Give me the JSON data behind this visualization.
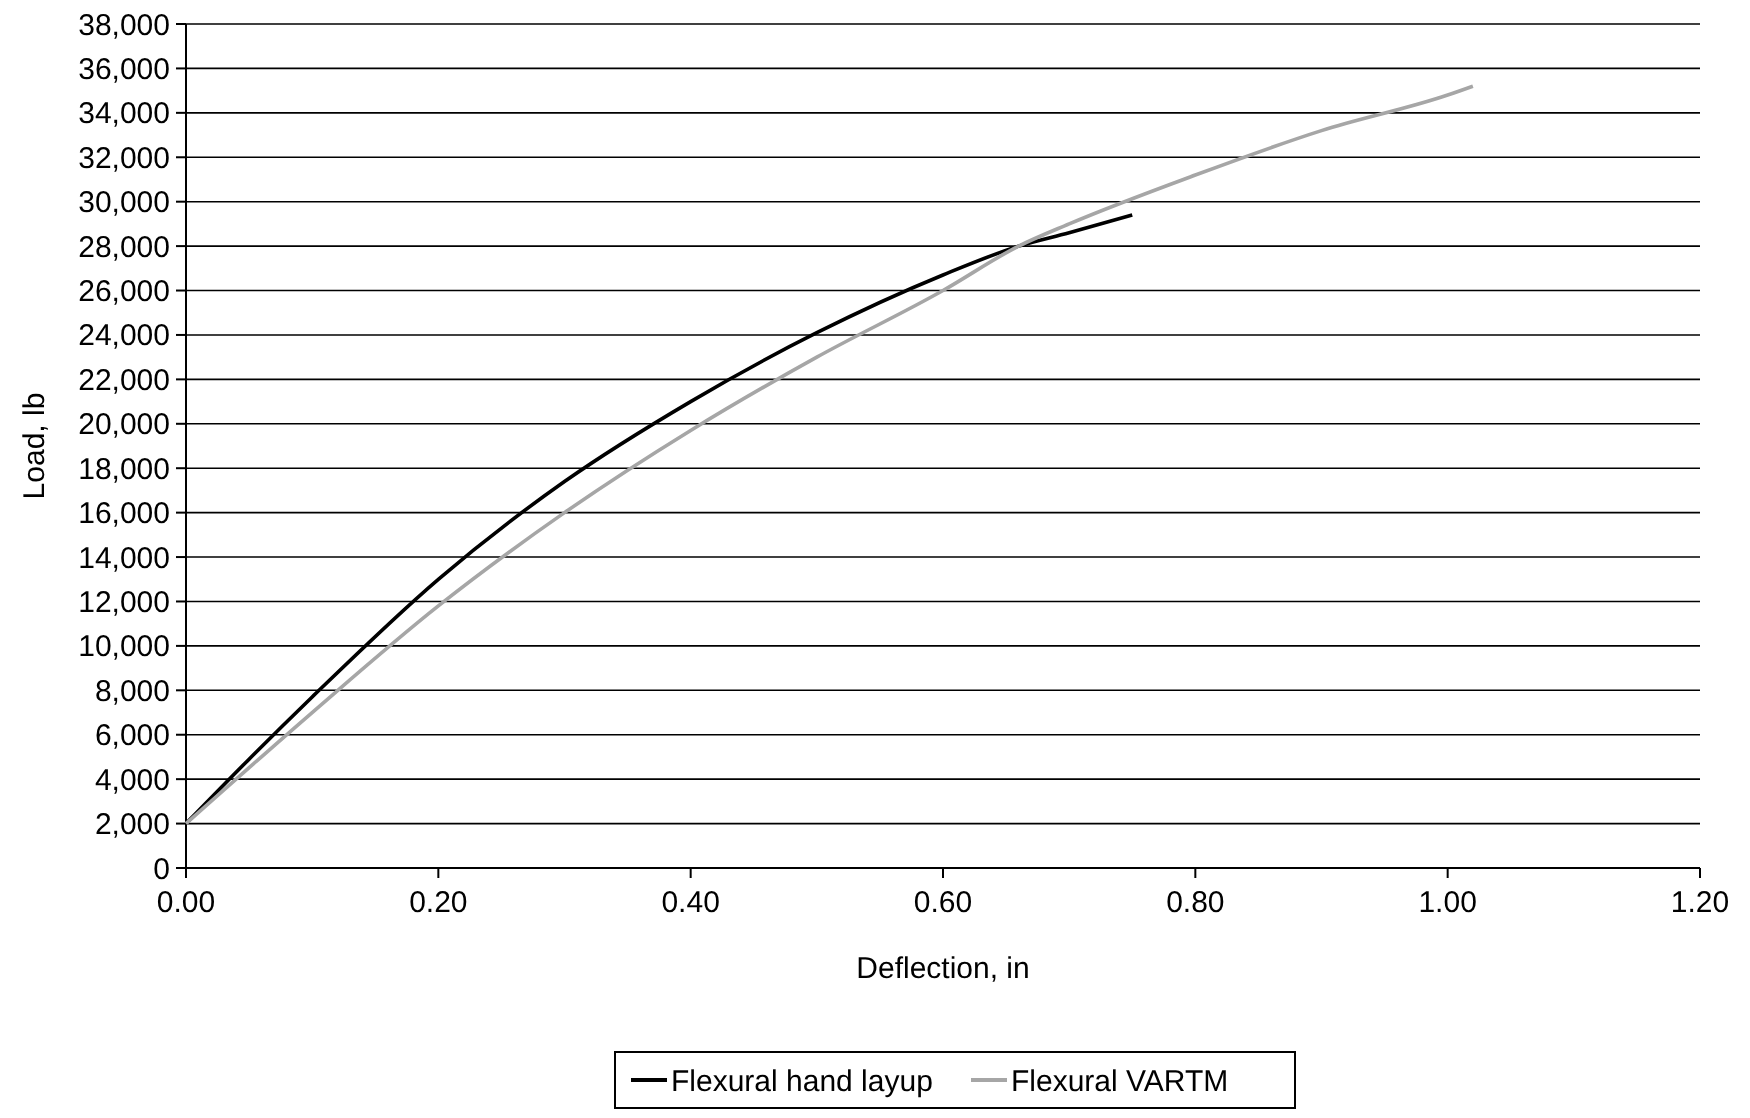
{
  "chart_data": {
    "type": "line",
    "xlabel": "Deflection, in",
    "ylabel": "Load, lb",
    "xlim": [
      0,
      1.2
    ],
    "xticks": [
      {
        "value": 0,
        "label": "0.00"
      },
      {
        "value": 0.2,
        "label": "0.20"
      },
      {
        "value": 0.4,
        "label": "0.40"
      },
      {
        "value": 0.6,
        "label": "0.60"
      },
      {
        "value": 0.8,
        "label": "0.80"
      },
      {
        "value": 1,
        "label": "1.00"
      },
      {
        "value": 1.2,
        "label": "1.20"
      }
    ],
    "ylim": [
      0,
      38000
    ],
    "yticks": [
      {
        "value": 0,
        "label": "0"
      },
      {
        "value": 2000,
        "label": "2,000"
      },
      {
        "value": 4000,
        "label": "4,000"
      },
      {
        "value": 6000,
        "label": "6,000"
      },
      {
        "value": 8000,
        "label": "8,000"
      },
      {
        "value": 10000,
        "label": "10,000"
      },
      {
        "value": 12000,
        "label": "12,000"
      },
      {
        "value": 14000,
        "label": "14,000"
      },
      {
        "value": 16000,
        "label": "16,000"
      },
      {
        "value": 18000,
        "label": "18,000"
      },
      {
        "value": 20000,
        "label": "20,000"
      },
      {
        "value": 22000,
        "label": "22,000"
      },
      {
        "value": 24000,
        "label": "24,000"
      },
      {
        "value": 26000,
        "label": "26,000"
      },
      {
        "value": 28000,
        "label": "28,000"
      },
      {
        "value": 30000,
        "label": "30,000"
      },
      {
        "value": 32000,
        "label": "32,000"
      },
      {
        "value": 34000,
        "label": "34,000"
      },
      {
        "value": 36000,
        "label": "36,000"
      },
      {
        "value": 38000,
        "label": "38,000"
      }
    ],
    "grid": "y",
    "legend": "bottom",
    "marker": "none",
    "line_style": "solid",
    "series": [
      {
        "name": "Flexural hand layup",
        "color": "#000000",
        "x": [
          0,
          0.05,
          0.1,
          0.2,
          0.3,
          0.4,
          0.5,
          0.6,
          0.66,
          0.7,
          0.75
        ],
        "values": [
          2000,
          4900,
          7700,
          13000,
          17400,
          21000,
          24100,
          26700,
          28000,
          28600,
          29400
        ]
      },
      {
        "name": "Flexural VARTM",
        "color": "#a6a6a6",
        "x": [
          0,
          0.1,
          0.2,
          0.3,
          0.4,
          0.5,
          0.6,
          0.66,
          0.7,
          0.8,
          0.9,
          1,
          1.02
        ],
        "values": [
          2000,
          7000,
          11800,
          16000,
          19700,
          23000,
          26000,
          28000,
          29000,
          31200,
          33200,
          34800,
          35200
        ]
      }
    ]
  }
}
